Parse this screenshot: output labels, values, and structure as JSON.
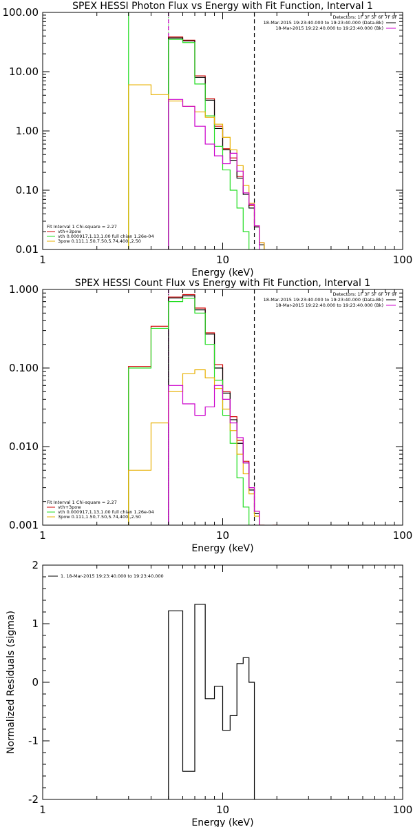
{
  "chart_data": [
    {
      "type": "line",
      "title": "SPEX HESSI Photon Flux vs Energy with Fit Function, Interval 1",
      "xlabel": "Energy (keV)",
      "ylabel": "",
      "x_scale": "log",
      "y_scale": "log",
      "xlim": [
        1,
        100
      ],
      "ylim": [
        0.01,
        100
      ],
      "x_ticks": [
        "1",
        "10",
        "100"
      ],
      "y_ticks": [
        "0.01",
        "0.10",
        "1.00",
        "10.00",
        "100.00"
      ],
      "x_tick_values": [
        1,
        10,
        100
      ],
      "y_tick_values": [
        0.01,
        0.1,
        1,
        10,
        100
      ],
      "grid": false,
      "info": {
        "detectors": "Detectors: 1F 3F 5F 6F 7F 9F",
        "time1": "18-Mar-2015 19:23:40.000 to 19:23:40.000 (Data-Bk)",
        "time2": "18-Mar-2015 19:22:40.000 to 19:23:40.000 (Bk)",
        "color1": "#000000",
        "color2": "#cc00cc"
      },
      "legend": {
        "placement": "bottom-left",
        "header": "Fit Interval 1   Chi-square = 2.27",
        "entries": [
          {
            "label": "vth+3pow",
            "color": "#d00000"
          },
          {
            "label": "vth 0.000917,1.13,1.00  full chian 1.26e-04",
            "color": "#22dd22"
          },
          {
            "label": "3pow 0.111,1.50,7.50,5.74,400.,2.50",
            "color": "#e8b000"
          }
        ]
      },
      "vlines": [
        {
          "x": 3.0,
          "color": "#22dd22",
          "style": "solid"
        },
        {
          "x": 5.0,
          "color": "#22dd22",
          "style": "dotted"
        },
        {
          "x": 5.0,
          "color": "#cc00cc",
          "style": "dashed"
        },
        {
          "x": 15.0,
          "color": "#000000",
          "style": "dashed"
        }
      ],
      "edges": [
        3,
        4,
        5,
        6,
        7,
        8,
        9,
        10,
        11,
        12,
        13,
        14,
        15,
        16,
        17,
        18,
        19,
        20
      ],
      "series": [
        {
          "key": "total",
          "color": "#d00000",
          "values": [
            null,
            null,
            38.5,
            34,
            8.5,
            3.5,
            1.2,
            0.5,
            0.35,
            0.17,
            0.09,
            0.055,
            0.025,
            0.013,
            null,
            null,
            null
          ]
        },
        {
          "key": "data",
          "color": "#000000",
          "values": [
            null,
            null,
            37,
            33,
            8,
            3.3,
            1.1,
            0.48,
            0.32,
            0.16,
            0.085,
            0.05,
            0.024,
            0.012,
            null,
            null,
            null
          ]
        },
        {
          "key": "thermal",
          "color": "#22dd22",
          "values": [
            null,
            null,
            35,
            31,
            6.2,
            1.8,
            0.55,
            0.22,
            0.1,
            0.05,
            0.02,
            0.008,
            null,
            null,
            null,
            null,
            null
          ]
        },
        {
          "key": "nonthermal",
          "color": "#e8b000",
          "values": [
            6,
            4.1,
            3.2,
            2.6,
            2.1,
            1.7,
            1.3,
            0.78,
            0.48,
            0.26,
            0.12,
            0.06,
            0.025,
            0.013,
            null,
            null,
            null
          ]
        },
        {
          "key": "background",
          "color": "#cc00cc",
          "values": [
            null,
            null,
            3.4,
            2.6,
            1.2,
            0.6,
            0.38,
            0.28,
            0.42,
            0.21,
            0.09,
            0.058,
            0.025,
            null,
            null,
            null,
            null
          ]
        }
      ]
    },
    {
      "type": "line",
      "title": "SPEX HESSI Count Flux vs Energy with Fit Function, Interval 1",
      "xlabel": "Energy (keV)",
      "ylabel": "",
      "x_scale": "log",
      "y_scale": "log",
      "xlim": [
        1,
        100
      ],
      "ylim": [
        0.001,
        1
      ],
      "x_ticks": [
        "1",
        "10",
        "100"
      ],
      "y_ticks": [
        "0.001",
        "0.010",
        "0.100",
        "1.000"
      ],
      "x_tick_values": [
        1,
        10,
        100
      ],
      "y_tick_values": [
        0.001,
        0.01,
        0.1,
        1
      ],
      "grid": false,
      "info": {
        "detectors": "Detectors: 1F 3F 5F 6F 7F 9F",
        "time1": "18-Mar-2015 19:23:40.000 to 19:23:40.000 (Data-Bk)",
        "time2": "18-Mar-2015 19:22:40.000 to 19:23:40.000 (Bk)",
        "color1": "#000000",
        "color2": "#cc00cc"
      },
      "legend": {
        "placement": "bottom-left",
        "header": "Fit Interval 1   Chi-square = 2.27",
        "entries": [
          {
            "label": "vth+3pow",
            "color": "#d00000"
          },
          {
            "label": "vth 0.000917,1.13,1.00  full chian 1.26e-04",
            "color": "#22dd22"
          },
          {
            "label": "3pow 0.111,1.50,7.50,5.74,400.,2.50",
            "color": "#e8b000"
          }
        ]
      },
      "vlines": [
        {
          "x": 5.0,
          "color": "#000000",
          "style": "dotted"
        },
        {
          "x": 5.0,
          "color": "#cc00cc",
          "style": "dashed"
        },
        {
          "x": 15.0,
          "color": "#000000",
          "style": "dashed"
        }
      ],
      "edges": [
        3,
        4,
        5,
        6,
        7,
        8,
        9,
        10,
        11,
        12,
        13,
        14,
        15,
        16,
        17,
        18,
        19,
        20
      ],
      "series": [
        {
          "key": "total",
          "color": "#d00000",
          "values": [
            0.105,
            0.34,
            0.8,
            0.86,
            0.58,
            0.28,
            0.11,
            0.05,
            0.024,
            0.012,
            0.0065,
            0.003,
            0.0015,
            0.001,
            null,
            null,
            0.001
          ]
        },
        {
          "key": "data",
          "color": "#000000",
          "values": [
            null,
            null,
            0.78,
            0.83,
            0.55,
            0.27,
            0.1,
            0.048,
            0.022,
            0.011,
            0.0062,
            0.0028,
            0.0014,
            null,
            null,
            null,
            null
          ]
        },
        {
          "key": "thermal",
          "color": "#22dd22",
          "values": [
            0.1,
            0.32,
            0.7,
            0.77,
            0.5,
            0.2,
            0.07,
            0.025,
            0.011,
            0.004,
            0.0017,
            null,
            null,
            null,
            null,
            null,
            null
          ]
        },
        {
          "key": "nonthermal",
          "color": "#e8b000",
          "values": [
            0.005,
            0.02,
            0.05,
            0.085,
            0.095,
            0.075,
            0.055,
            0.03,
            0.016,
            0.008,
            0.0045,
            0.0025,
            0.0013,
            null,
            null,
            null,
            null
          ]
        },
        {
          "key": "background",
          "color": "#cc00cc",
          "values": [
            null,
            null,
            0.06,
            0.035,
            0.025,
            0.032,
            0.06,
            0.04,
            0.02,
            0.013,
            0.0062,
            0.003,
            0.0015,
            null,
            null,
            null,
            null
          ]
        }
      ]
    },
    {
      "type": "line",
      "title": "",
      "xlabel": "Energy (keV)",
      "ylabel": "Normalized Residuals (sigma)",
      "x_scale": "log",
      "y_scale": "linear",
      "xlim": [
        1,
        100
      ],
      "ylim": [
        -2,
        2
      ],
      "x_ticks": [
        "1",
        "10",
        "100"
      ],
      "y_ticks": [
        "-2",
        "-1",
        "0",
        "1",
        "2"
      ],
      "x_tick_values": [
        1,
        10,
        100
      ],
      "y_tick_values": [
        -2,
        -1,
        0,
        1,
        2
      ],
      "grid": false,
      "legend": {
        "placement": "top-left",
        "entries": [
          {
            "label": "1. 18-Mar-2015 19:23:40.000 to 19:23:40.000",
            "color": "#000000"
          }
        ]
      },
      "edges": [
        5,
        6,
        7,
        8,
        9,
        10,
        11,
        12,
        13,
        14,
        15
      ],
      "series": [
        {
          "key": "residuals",
          "color": "#000000",
          "values": [
            1.22,
            -1.52,
            1.33,
            -0.28,
            -0.07,
            -0.82,
            -0.57,
            0.32,
            0.42,
            0.0
          ]
        }
      ]
    }
  ]
}
